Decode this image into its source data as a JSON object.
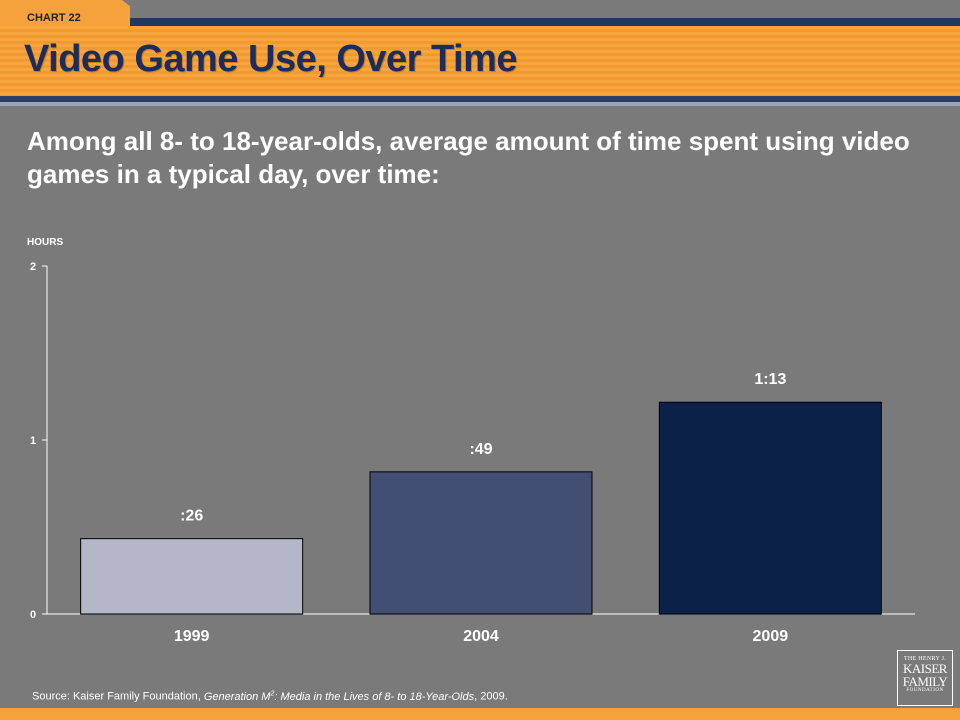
{
  "header": {
    "tab_label": "CHART 22",
    "title": "Video Game Use, Over Time"
  },
  "subtitle": "Among all 8- to 18-year-olds, average amount of time spent using video games in a typical day, over time:",
  "chart_data": {
    "type": "bar",
    "title": "",
    "ylabel": "HOURS",
    "xlabel": "",
    "ylim": [
      0,
      2
    ],
    "yticks": [
      "0",
      "1",
      "2"
    ],
    "categories": [
      "1999",
      "2004",
      "2009"
    ],
    "values": [
      0.433,
      0.817,
      1.217
    ],
    "data_labels": [
      ":26",
      ":49",
      "1:13"
    ],
    "bar_colors": [
      "#b4b7c8",
      "#434f72",
      "#0b2149"
    ],
    "grid": false
  },
  "source": {
    "prefix": "Source: Kaiser Family Foundation, ",
    "italic": "Generation M",
    "sup": "2",
    "italic2": ": Media in the Lives of 8- to 18-Year-Olds",
    "suffix": ", 2009."
  },
  "logo": {
    "line1": "THE HENRY J.",
    "line2": "KAISER",
    "line3": "FAMILY",
    "line4": "FOUNDATION"
  }
}
